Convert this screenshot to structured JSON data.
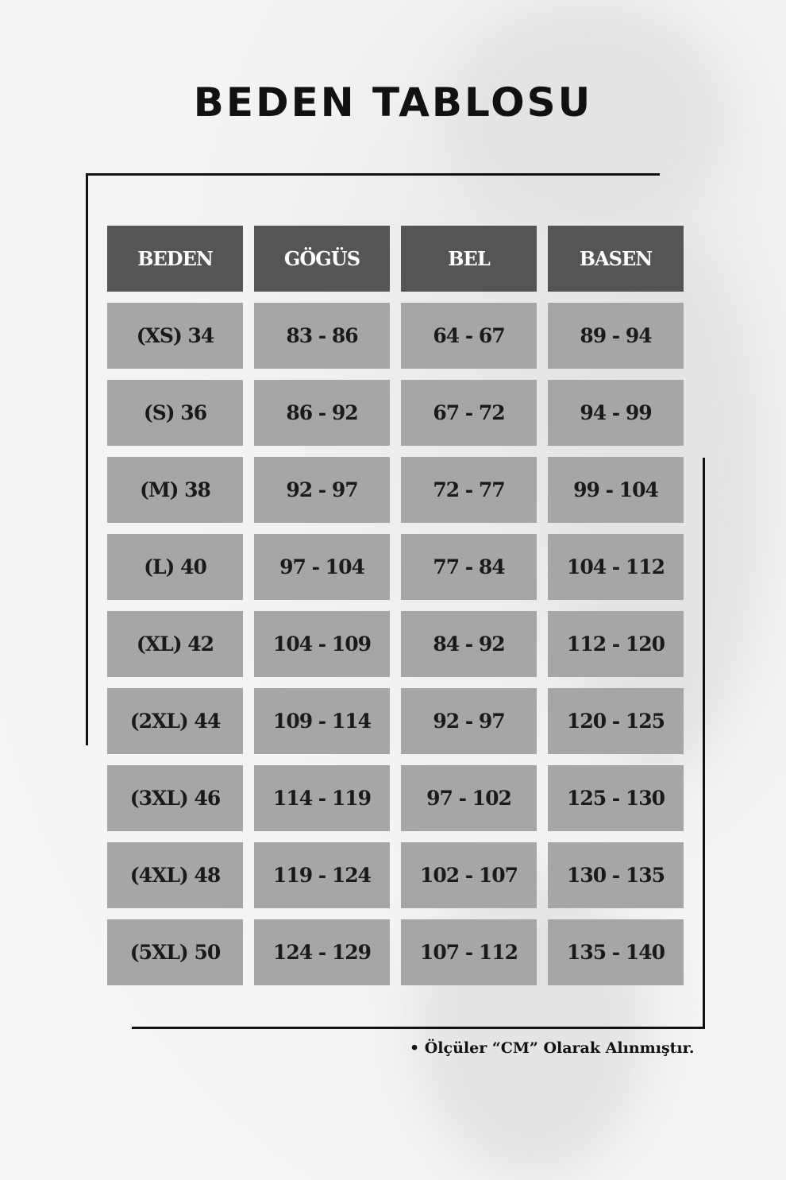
{
  "title": "BEDEN TABLOSU",
  "colors": {
    "header_bg": "#555555",
    "cell_bg": "#a6a6a6",
    "header_text": "#ffffff",
    "cell_text": "#1a1a1a"
  },
  "table": {
    "headers": [
      "BEDEN",
      "GÖGÜS",
      "BEL",
      "BASEN"
    ],
    "rows": [
      [
        "(XS) 34",
        "83 - 86",
        "64 - 67",
        "89 - 94"
      ],
      [
        "(S) 36",
        "86 - 92",
        "67 - 72",
        "94 - 99"
      ],
      [
        "(M) 38",
        "92 - 97",
        "72 - 77",
        "99 - 104"
      ],
      [
        "(L) 40",
        "97 - 104",
        "77 - 84",
        "104 - 112"
      ],
      [
        "(XL) 42",
        "104 - 109",
        "84 - 92",
        "112 - 120"
      ],
      [
        "(2XL) 44",
        "109 - 114",
        "92 - 97",
        "120 - 125"
      ],
      [
        "(3XL) 46",
        "114 - 119",
        "97 - 102",
        "125 - 130"
      ],
      [
        "(4XL) 48",
        "119 - 124",
        "102 - 107",
        "130 - 135"
      ],
      [
        "(5XL) 50",
        "124 - 129",
        "107 - 112",
        "135 - 140"
      ]
    ]
  },
  "note": "• Ölçüler “CM” Olarak Alınmıştır."
}
